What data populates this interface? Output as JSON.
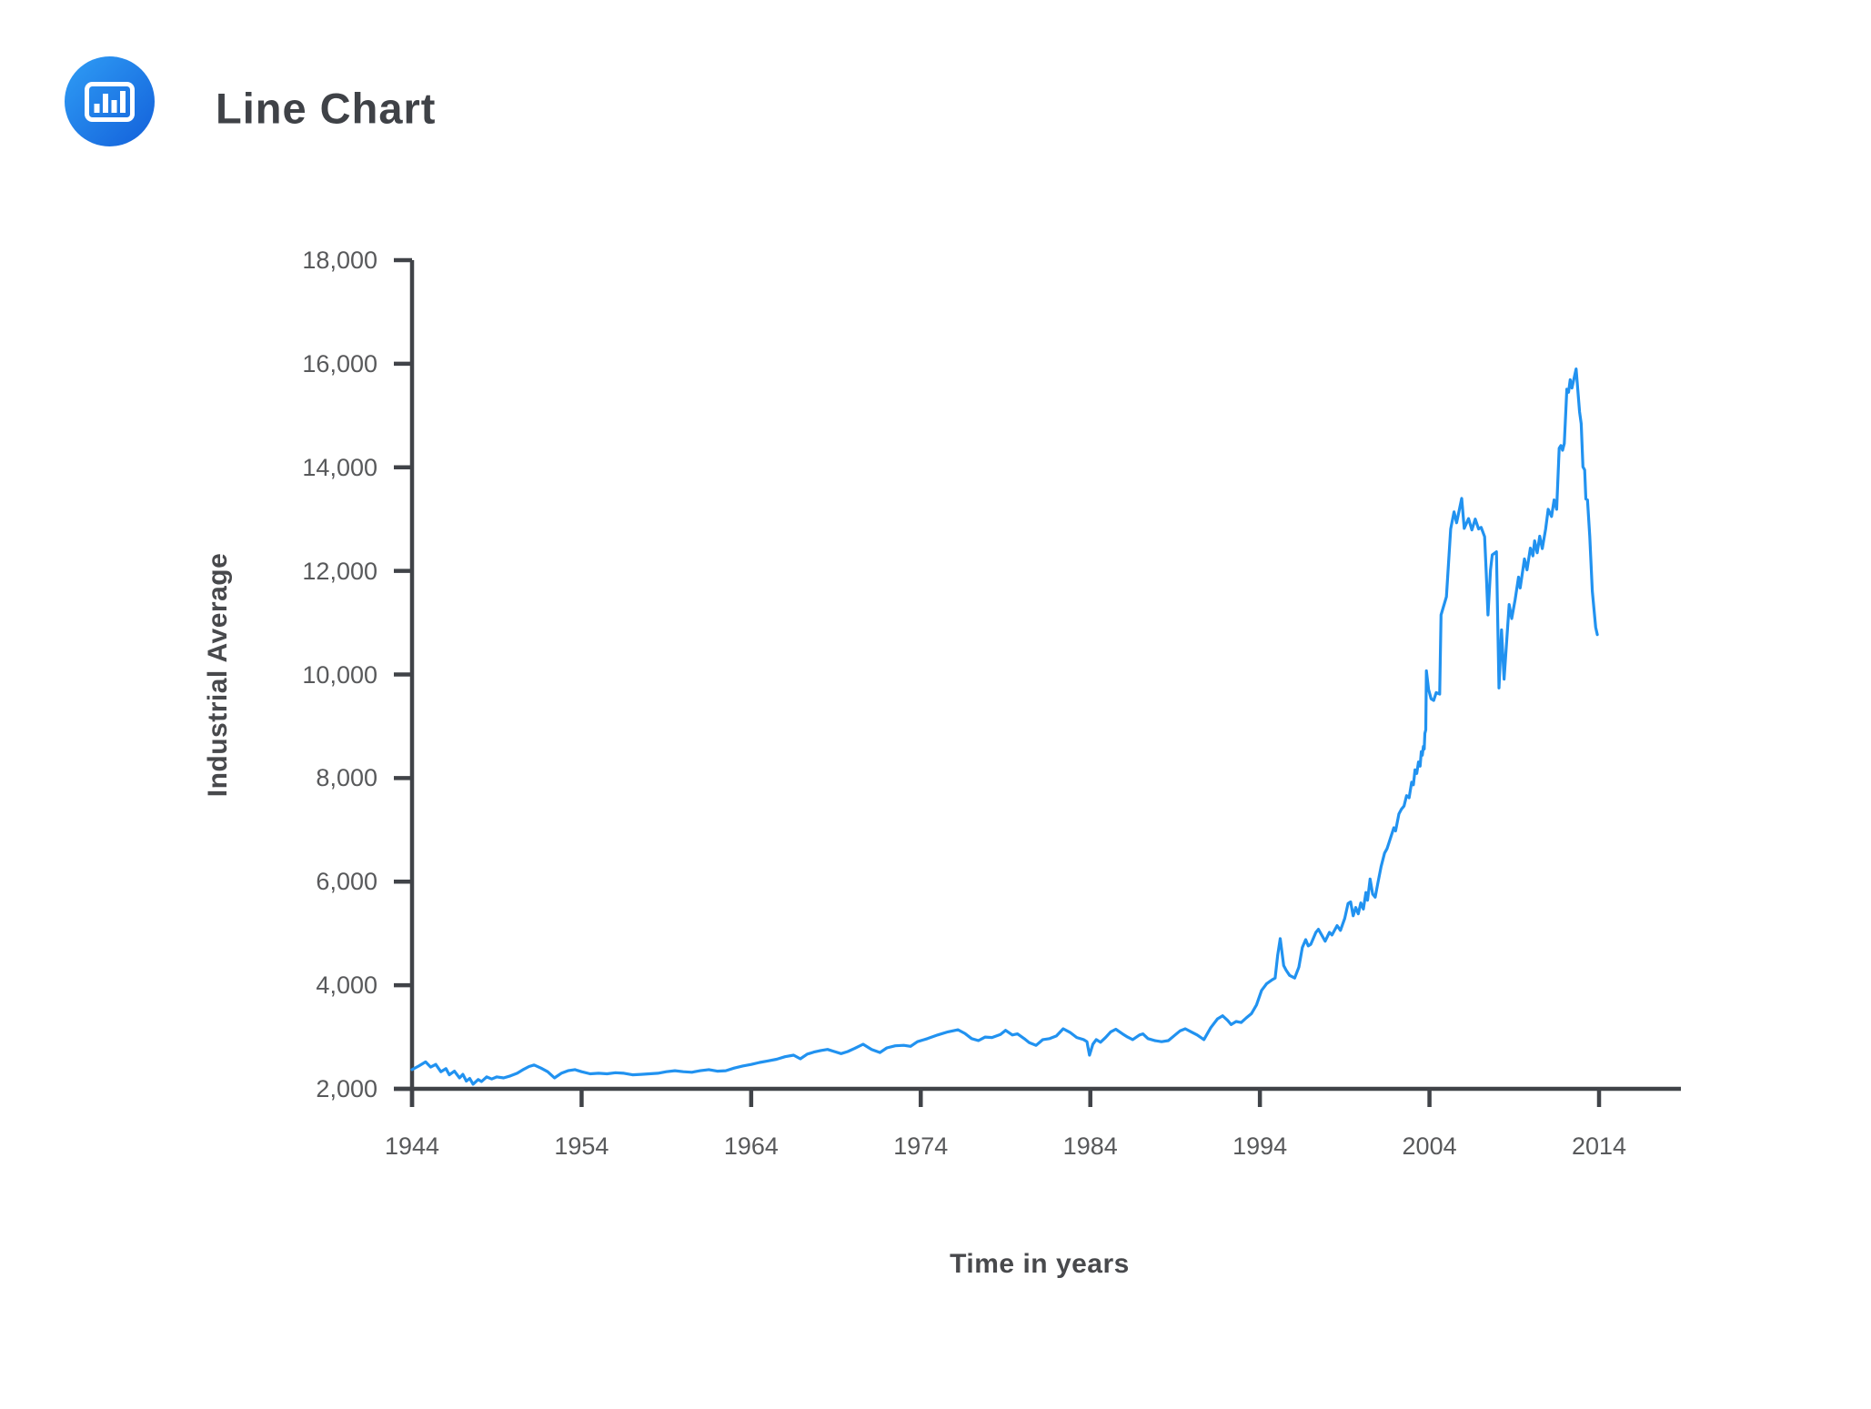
{
  "header": {
    "title": "Line Chart",
    "icon": "bar-chart-logo-icon"
  },
  "colors": {
    "background": "#FFFFFF",
    "line": "#2192F0",
    "axis": "#404348",
    "tick_label": "#58595B",
    "axis_title": "#48494C",
    "title_text": "#3F4247",
    "icon_gradient_start": "#2F9DF5",
    "icon_gradient_end": "#1360DA"
  },
  "chart_data": {
    "type": "line",
    "title": "",
    "xlabel": "Time in years",
    "ylabel": "Industrial Average",
    "xlim": [
      1944,
      2014
    ],
    "ylim": [
      2000,
      18000
    ],
    "grid": false,
    "legend": "none",
    "x_ticks": [
      1944,
      1954,
      1964,
      1974,
      1984,
      1994,
      2004,
      2014
    ],
    "y_ticks": [
      2000,
      4000,
      6000,
      8000,
      10000,
      12000,
      14000,
      16000,
      18000
    ],
    "y_tick_labels": [
      "2,000",
      "4,000",
      "6,000",
      "8,000",
      "10,000",
      "12,000",
      "14,000",
      "16,000",
      "18,000"
    ],
    "series": [
      {
        "name": "Industrial Average",
        "points": [
          [
            1944.0,
            2370
          ],
          [
            1944.4,
            2440
          ],
          [
            1944.8,
            2520
          ],
          [
            1945.1,
            2420
          ],
          [
            1945.4,
            2470
          ],
          [
            1945.7,
            2330
          ],
          [
            1946.0,
            2390
          ],
          [
            1946.2,
            2270
          ],
          [
            1946.5,
            2340
          ],
          [
            1946.8,
            2210
          ],
          [
            1947.0,
            2280
          ],
          [
            1947.2,
            2150
          ],
          [
            1947.4,
            2200
          ],
          [
            1947.6,
            2090
          ],
          [
            1947.9,
            2180
          ],
          [
            1948.1,
            2140
          ],
          [
            1948.4,
            2230
          ],
          [
            1948.7,
            2190
          ],
          [
            1949.0,
            2230
          ],
          [
            1949.4,
            2210
          ],
          [
            1949.8,
            2250
          ],
          [
            1950.2,
            2300
          ],
          [
            1950.6,
            2380
          ],
          [
            1950.9,
            2430
          ],
          [
            1951.2,
            2460
          ],
          [
            1951.6,
            2400
          ],
          [
            1952.0,
            2330
          ],
          [
            1952.4,
            2210
          ],
          [
            1952.8,
            2300
          ],
          [
            1953.2,
            2350
          ],
          [
            1953.6,
            2370
          ],
          [
            1954.0,
            2330
          ],
          [
            1954.5,
            2290
          ],
          [
            1955.0,
            2300
          ],
          [
            1955.5,
            2290
          ],
          [
            1956.0,
            2310
          ],
          [
            1956.5,
            2300
          ],
          [
            1957.0,
            2270
          ],
          [
            1957.5,
            2280
          ],
          [
            1958.0,
            2290
          ],
          [
            1958.5,
            2300
          ],
          [
            1959.0,
            2330
          ],
          [
            1959.5,
            2350
          ],
          [
            1960.0,
            2330
          ],
          [
            1960.5,
            2320
          ],
          [
            1961.0,
            2350
          ],
          [
            1961.5,
            2370
          ],
          [
            1962.0,
            2340
          ],
          [
            1962.5,
            2350
          ],
          [
            1963.0,
            2400
          ],
          [
            1963.5,
            2440
          ],
          [
            1964.0,
            2470
          ],
          [
            1964.5,
            2510
          ],
          [
            1965.0,
            2540
          ],
          [
            1965.5,
            2570
          ],
          [
            1966.0,
            2620
          ],
          [
            1966.5,
            2650
          ],
          [
            1966.9,
            2580
          ],
          [
            1967.3,
            2670
          ],
          [
            1967.7,
            2710
          ],
          [
            1968.1,
            2740
          ],
          [
            1968.5,
            2760
          ],
          [
            1968.9,
            2720
          ],
          [
            1969.3,
            2680
          ],
          [
            1969.7,
            2720
          ],
          [
            1970.1,
            2780
          ],
          [
            1970.6,
            2860
          ],
          [
            1971.1,
            2760
          ],
          [
            1971.6,
            2700
          ],
          [
            1972.0,
            2790
          ],
          [
            1972.5,
            2830
          ],
          [
            1973.0,
            2840
          ],
          [
            1973.4,
            2820
          ],
          [
            1973.8,
            2910
          ],
          [
            1974.4,
            2970
          ],
          [
            1975.0,
            3040
          ],
          [
            1975.6,
            3100
          ],
          [
            1976.2,
            3140
          ],
          [
            1976.6,
            3070
          ],
          [
            1977.0,
            2970
          ],
          [
            1977.4,
            2930
          ],
          [
            1977.8,
            3000
          ],
          [
            1978.2,
            2990
          ],
          [
            1978.7,
            3050
          ],
          [
            1979.0,
            3130
          ],
          [
            1979.4,
            3040
          ],
          [
            1979.7,
            3060
          ],
          [
            1980.1,
            2970
          ],
          [
            1980.4,
            2890
          ],
          [
            1980.8,
            2840
          ],
          [
            1981.2,
            2950
          ],
          [
            1981.6,
            2970
          ],
          [
            1982.0,
            3020
          ],
          [
            1982.4,
            3160
          ],
          [
            1982.8,
            3090
          ],
          [
            1983.2,
            2990
          ],
          [
            1983.6,
            2950
          ],
          [
            1983.8,
            2910
          ],
          [
            1983.95,
            2650
          ],
          [
            1984.15,
            2860
          ],
          [
            1984.35,
            2950
          ],
          [
            1984.6,
            2900
          ],
          [
            1984.9,
            2990
          ],
          [
            1985.2,
            3100
          ],
          [
            1985.5,
            3150
          ],
          [
            1985.9,
            3060
          ],
          [
            1986.2,
            3000
          ],
          [
            1986.5,
            2950
          ],
          [
            1986.9,
            3040
          ],
          [
            1987.1,
            3060
          ],
          [
            1987.4,
            2970
          ],
          [
            1987.8,
            2930
          ],
          [
            1988.2,
            2910
          ],
          [
            1988.6,
            2930
          ],
          [
            1989.0,
            3040
          ],
          [
            1989.3,
            3120
          ],
          [
            1989.6,
            3160
          ],
          [
            1990.0,
            3090
          ],
          [
            1990.3,
            3040
          ],
          [
            1990.7,
            2950
          ],
          [
            1991.1,
            3180
          ],
          [
            1991.5,
            3350
          ],
          [
            1991.8,
            3410
          ],
          [
            1992.1,
            3320
          ],
          [
            1992.3,
            3240
          ],
          [
            1992.6,
            3300
          ],
          [
            1992.9,
            3280
          ],
          [
            1993.2,
            3370
          ],
          [
            1993.5,
            3450
          ],
          [
            1993.8,
            3620
          ],
          [
            1994.1,
            3900
          ],
          [
            1994.4,
            4030
          ],
          [
            1994.7,
            4100
          ],
          [
            1994.9,
            4140
          ],
          [
            1995.05,
            4580
          ],
          [
            1995.2,
            4900
          ],
          [
            1995.4,
            4380
          ],
          [
            1995.55,
            4290
          ],
          [
            1995.75,
            4190
          ],
          [
            1996.05,
            4140
          ],
          [
            1996.3,
            4350
          ],
          [
            1996.5,
            4730
          ],
          [
            1996.7,
            4880
          ],
          [
            1996.85,
            4760
          ],
          [
            1997.0,
            4790
          ],
          [
            1997.3,
            5020
          ],
          [
            1997.45,
            5080
          ],
          [
            1997.85,
            4850
          ],
          [
            1998.1,
            5020
          ],
          [
            1998.25,
            4970
          ],
          [
            1998.55,
            5150
          ],
          [
            1998.75,
            5060
          ],
          [
            1999.0,
            5290
          ],
          [
            1999.2,
            5580
          ],
          [
            1999.35,
            5610
          ],
          [
            1999.5,
            5340
          ],
          [
            1999.65,
            5500
          ],
          [
            1999.8,
            5380
          ],
          [
            1999.95,
            5590
          ],
          [
            2000.1,
            5470
          ],
          [
            2000.25,
            5790
          ],
          [
            2000.35,
            5640
          ],
          [
            2000.5,
            6050
          ],
          [
            2000.65,
            5760
          ],
          [
            2000.8,
            5700
          ],
          [
            2000.95,
            5960
          ],
          [
            2001.15,
            6290
          ],
          [
            2001.35,
            6550
          ],
          [
            2001.5,
            6640
          ],
          [
            2001.7,
            6840
          ],
          [
            2001.9,
            7040
          ],
          [
            2002.0,
            6980
          ],
          [
            2002.2,
            7310
          ],
          [
            2002.35,
            7400
          ],
          [
            2002.5,
            7460
          ],
          [
            2002.65,
            7660
          ],
          [
            2002.8,
            7620
          ],
          [
            2002.95,
            7920
          ],
          [
            2003.05,
            7870
          ],
          [
            2003.15,
            8160
          ],
          [
            2003.25,
            8090
          ],
          [
            2003.35,
            8310
          ],
          [
            2003.45,
            8230
          ],
          [
            2003.52,
            8510
          ],
          [
            2003.58,
            8440
          ],
          [
            2003.64,
            8610
          ],
          [
            2003.69,
            8560
          ],
          [
            2003.73,
            8860
          ],
          [
            2003.78,
            8930
          ],
          [
            2003.82,
            10070
          ],
          [
            2003.95,
            9710
          ],
          [
            2004.1,
            9530
          ],
          [
            2004.25,
            9500
          ],
          [
            2004.4,
            9650
          ],
          [
            2004.6,
            9620
          ],
          [
            2004.68,
            11150
          ],
          [
            2005.0,
            11500
          ],
          [
            2005.25,
            12810
          ],
          [
            2005.45,
            13140
          ],
          [
            2005.6,
            12930
          ],
          [
            2005.9,
            13400
          ],
          [
            2006.05,
            12820
          ],
          [
            2006.3,
            13010
          ],
          [
            2006.5,
            12790
          ],
          [
            2006.7,
            13000
          ],
          [
            2006.9,
            12810
          ],
          [
            2007.05,
            12840
          ],
          [
            2007.25,
            12660
          ],
          [
            2007.35,
            11960
          ],
          [
            2007.45,
            11150
          ],
          [
            2007.6,
            12020
          ],
          [
            2007.7,
            12310
          ],
          [
            2007.95,
            12370
          ],
          [
            2008.1,
            9740
          ],
          [
            2008.25,
            10860
          ],
          [
            2008.4,
            9910
          ],
          [
            2008.7,
            11350
          ],
          [
            2008.85,
            11080
          ],
          [
            2009.05,
            11440
          ],
          [
            2009.25,
            11880
          ],
          [
            2009.35,
            11670
          ],
          [
            2009.6,
            12230
          ],
          [
            2009.75,
            12020
          ],
          [
            2009.95,
            12440
          ],
          [
            2010.1,
            12290
          ],
          [
            2010.2,
            12580
          ],
          [
            2010.35,
            12350
          ],
          [
            2010.5,
            12670
          ],
          [
            2010.65,
            12430
          ],
          [
            2010.85,
            12810
          ],
          [
            2011.0,
            13190
          ],
          [
            2011.2,
            13050
          ],
          [
            2011.35,
            13370
          ],
          [
            2011.5,
            13190
          ],
          [
            2011.65,
            14370
          ],
          [
            2011.75,
            14420
          ],
          [
            2011.85,
            14330
          ],
          [
            2011.95,
            14460
          ],
          [
            2012.1,
            15510
          ],
          [
            2012.2,
            15450
          ],
          [
            2012.3,
            15690
          ],
          [
            2012.4,
            15530
          ],
          [
            2012.65,
            15900
          ],
          [
            2012.85,
            15070
          ],
          [
            2012.95,
            14840
          ],
          [
            2013.05,
            14010
          ],
          [
            2013.15,
            13950
          ],
          [
            2013.22,
            13390
          ],
          [
            2013.32,
            13370
          ],
          [
            2013.45,
            12670
          ],
          [
            2013.6,
            11610
          ],
          [
            2013.8,
            10910
          ],
          [
            2013.9,
            10770
          ]
        ]
      }
    ]
  }
}
